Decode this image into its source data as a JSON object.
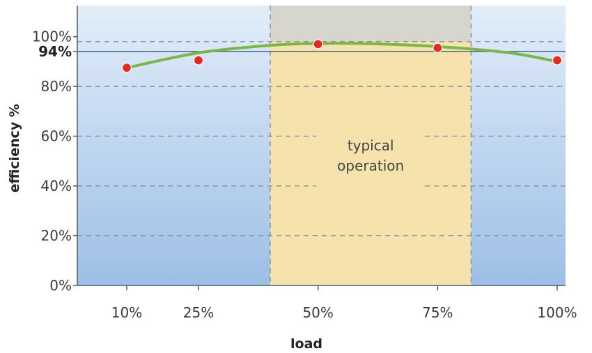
{
  "chart_data": {
    "type": "line",
    "ylabel": "efficiency %",
    "xlabel": "load",
    "ylim": [
      0,
      100
    ],
    "yticks": [
      {
        "value": 0,
        "label": "0%"
      },
      {
        "value": 20,
        "label": "20%"
      },
      {
        "value": 40,
        "label": "40%"
      },
      {
        "value": 60,
        "label": "60%"
      },
      {
        "value": 80,
        "label": "80%"
      },
      {
        "value": 94,
        "label": "94%",
        "bold": true
      },
      {
        "value": 100,
        "label": "100%"
      }
    ],
    "xticks": [
      {
        "value": 10,
        "label": "10%"
      },
      {
        "value": 25,
        "label": "25%"
      },
      {
        "value": 50,
        "label": "50%"
      },
      {
        "value": 75,
        "label": "75%"
      },
      {
        "value": 100,
        "label": "100%"
      }
    ],
    "points": [
      {
        "x": 10,
        "y": 87.5
      },
      {
        "x": 25,
        "y": 90.5
      },
      {
        "x": 50,
        "y": 97
      },
      {
        "x": 75,
        "y": 95.5
      },
      {
        "x": 100,
        "y": 90.5
      }
    ],
    "curve": [
      [
        10,
        87.5
      ],
      [
        25,
        93.5
      ],
      [
        40,
        96.5
      ],
      [
        50,
        97.3
      ],
      [
        60,
        97.2
      ],
      [
        75,
        96
      ],
      [
        90,
        93.5
      ],
      [
        100,
        90
      ]
    ],
    "reference_line": {
      "y": 94
    },
    "dashed_gridlines_y": [
      20,
      40,
      60,
      80,
      98
    ],
    "region": {
      "x_start": 40,
      "x_end": 82,
      "label_lines": [
        "typical",
        "operation"
      ]
    },
    "grid": true,
    "colors": {
      "background_top": "#e2edf9",
      "background_bottom": "#9dbfe6",
      "region": "#f6e2ad",
      "region_top": "#d6d6cf",
      "curve": "#7ab648",
      "point": "#e32b26",
      "reference_line": "#4f6d8c"
    }
  }
}
